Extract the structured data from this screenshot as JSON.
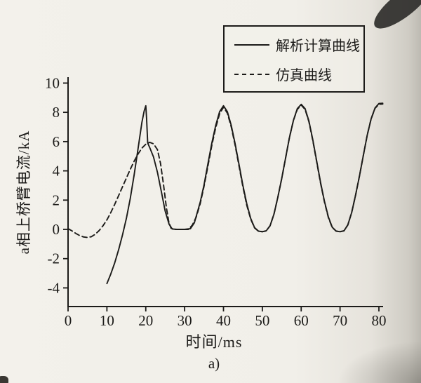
{
  "page": {
    "caption": "a)"
  },
  "chart_data": {
    "type": "line",
    "title": "",
    "xlabel": "时间/ms",
    "ylabel": "a相上桥臂电流/kA",
    "xlim": [
      0,
      81
    ],
    "ylim": [
      -5.3,
      10.4
    ],
    "x_ticks": [
      0,
      10,
      20,
      30,
      40,
      50,
      60,
      70,
      80
    ],
    "y_ticks": [
      -4,
      -2,
      0,
      2,
      4,
      6,
      8,
      10
    ],
    "grid": false,
    "legend_position": "top-right",
    "axis_color": "#1c1b19",
    "series": [
      {
        "name": "解析计算曲线",
        "style": "solid",
        "color": "#1c1b19",
        "points": [
          [
            10,
            -3.7
          ],
          [
            11,
            -3.05
          ],
          [
            12,
            -2.3
          ],
          [
            13,
            -1.4
          ],
          [
            14,
            -0.4
          ],
          [
            15,
            0.75
          ],
          [
            16,
            2.1
          ],
          [
            17,
            3.7
          ],
          [
            18,
            5.5
          ],
          [
            19,
            7.3
          ],
          [
            19.6,
            8.1
          ],
          [
            20,
            8.45
          ],
          [
            20.2,
            7.6
          ],
          [
            20.5,
            5.9
          ],
          [
            21,
            5.6
          ],
          [
            22,
            4.95
          ],
          [
            23,
            3.9
          ],
          [
            24,
            2.6
          ],
          [
            25,
            1.25
          ],
          [
            26,
            0.35
          ],
          [
            26.8,
            0.03
          ],
          [
            28,
            0
          ],
          [
            30,
            0
          ],
          [
            31.5,
            0.05
          ],
          [
            32.5,
            0.45
          ],
          [
            34,
            1.85
          ],
          [
            35,
            3.05
          ],
          [
            36,
            4.5
          ],
          [
            37,
            5.9
          ],
          [
            38,
            7.1
          ],
          [
            39,
            8.05
          ],
          [
            40,
            8.45
          ],
          [
            41,
            8.05
          ],
          [
            42,
            7.1
          ],
          [
            43,
            5.85
          ],
          [
            44,
            4.45
          ],
          [
            45,
            3.0
          ],
          [
            46,
            1.75
          ],
          [
            47,
            0.75
          ],
          [
            48,
            0.12
          ],
          [
            49,
            -0.12
          ],
          [
            50,
            -0.16
          ],
          [
            51,
            -0.1
          ],
          [
            52,
            0.25
          ],
          [
            53,
            1.05
          ],
          [
            54,
            2.2
          ],
          [
            55,
            3.5
          ],
          [
            56,
            4.9
          ],
          [
            57,
            6.3
          ],
          [
            58,
            7.45
          ],
          [
            59,
            8.25
          ],
          [
            60,
            8.55
          ],
          [
            61,
            8.25
          ],
          [
            62,
            7.4
          ],
          [
            63,
            6.1
          ],
          [
            64,
            4.65
          ],
          [
            65,
            3.2
          ],
          [
            66,
            1.9
          ],
          [
            67,
            0.85
          ],
          [
            68,
            0.15
          ],
          [
            69,
            -0.12
          ],
          [
            70,
            -0.16
          ],
          [
            71,
            -0.1
          ],
          [
            72,
            0.3
          ],
          [
            73,
            1.15
          ],
          [
            74,
            2.35
          ],
          [
            75,
            3.65
          ],
          [
            76,
            5.05
          ],
          [
            77,
            6.45
          ],
          [
            78,
            7.55
          ],
          [
            79,
            8.3
          ],
          [
            80,
            8.6
          ],
          [
            81,
            8.62
          ]
        ]
      },
      {
        "name": "仿真曲线",
        "style": "dashed",
        "color": "#1c1b19",
        "points": [
          [
            0,
            0.05
          ],
          [
            1,
            -0.1
          ],
          [
            2,
            -0.28
          ],
          [
            3,
            -0.42
          ],
          [
            4,
            -0.52
          ],
          [
            5,
            -0.55
          ],
          [
            6,
            -0.5
          ],
          [
            7,
            -0.33
          ],
          [
            8,
            -0.08
          ],
          [
            9,
            0.25
          ],
          [
            10,
            0.65
          ],
          [
            11,
            1.15
          ],
          [
            12,
            1.7
          ],
          [
            13,
            2.3
          ],
          [
            14,
            2.9
          ],
          [
            15,
            3.5
          ],
          [
            16,
            4.1
          ],
          [
            17,
            4.65
          ],
          [
            18,
            5.15
          ],
          [
            19,
            5.55
          ],
          [
            20,
            5.82
          ],
          [
            21,
            5.95
          ],
          [
            22,
            5.85
          ],
          [
            23,
            5.45
          ],
          [
            23.8,
            4.5
          ],
          [
            24.6,
            3.0
          ],
          [
            25.3,
            1.5
          ],
          [
            25.9,
            0.55
          ],
          [
            26.5,
            0.08
          ],
          [
            27.5,
            0
          ],
          [
            29,
            0
          ],
          [
            31,
            0
          ],
          [
            32,
            0.3
          ],
          [
            33,
            0.85
          ],
          [
            34,
            1.75
          ],
          [
            35,
            2.95
          ],
          [
            36,
            4.35
          ],
          [
            37,
            5.75
          ],
          [
            38,
            6.95
          ],
          [
            39,
            7.9
          ],
          [
            40,
            8.35
          ],
          [
            41,
            7.95
          ],
          [
            42,
            7.0
          ],
          [
            43,
            5.75
          ],
          [
            44,
            4.35
          ],
          [
            45,
            2.9
          ],
          [
            46,
            1.65
          ],
          [
            47,
            0.7
          ],
          [
            48,
            0.1
          ],
          [
            49,
            -0.12
          ],
          [
            50,
            -0.16
          ],
          [
            51,
            -0.1
          ],
          [
            52,
            0.25
          ],
          [
            53,
            1.05
          ],
          [
            54,
            2.2
          ],
          [
            55,
            3.5
          ],
          [
            56,
            4.9
          ],
          [
            57,
            6.3
          ],
          [
            58,
            7.45
          ],
          [
            59,
            8.2
          ],
          [
            60,
            8.5
          ],
          [
            61,
            8.2
          ],
          [
            62,
            7.35
          ],
          [
            63,
            6.05
          ],
          [
            64,
            4.6
          ],
          [
            65,
            3.15
          ],
          [
            66,
            1.85
          ],
          [
            67,
            0.8
          ],
          [
            68,
            0.13
          ],
          [
            69,
            -0.12
          ],
          [
            70,
            -0.16
          ],
          [
            71,
            -0.1
          ],
          [
            72,
            0.3
          ],
          [
            73,
            1.15
          ],
          [
            74,
            2.35
          ],
          [
            75,
            3.65
          ],
          [
            76,
            5.05
          ],
          [
            77,
            6.45
          ],
          [
            78,
            7.55
          ],
          [
            79,
            8.28
          ],
          [
            80,
            8.55
          ],
          [
            81,
            8.57
          ]
        ]
      }
    ]
  }
}
